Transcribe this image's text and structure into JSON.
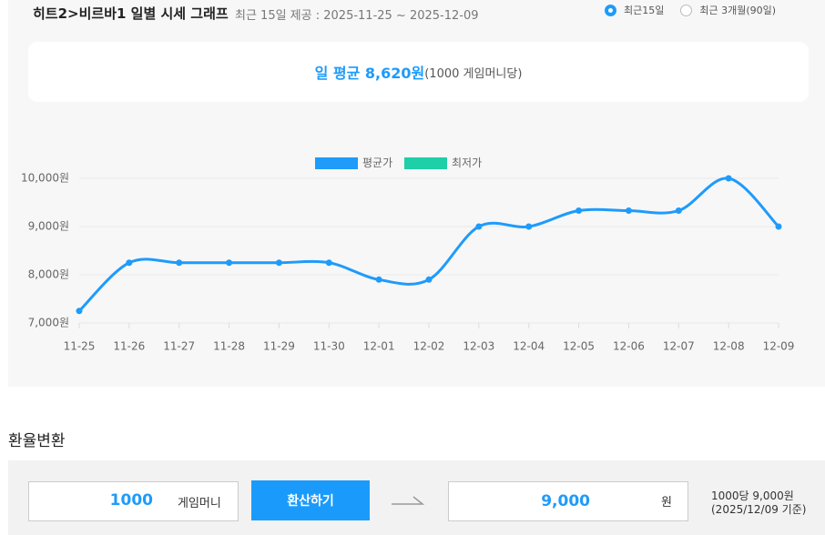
{
  "header": {
    "title": "히트2>비르바1 일별 시세 그래프",
    "subtitle": "최근 15일 제공 : 2025-11-25 ~ 2025-12-09"
  },
  "period_options": [
    {
      "label": "최근15일",
      "selected": true
    },
    {
      "label": "최근 3개월(90일)",
      "selected": false
    }
  ],
  "summary": {
    "average": "일 평균 8,620원",
    "unit_note": "(1000 게임머니당)"
  },
  "chart_data": {
    "type": "line",
    "categories": [
      "11-25",
      "11-26",
      "11-27",
      "11-28",
      "11-29",
      "11-30",
      "12-01",
      "12-02",
      "12-03",
      "12-04",
      "12-05",
      "12-06",
      "12-07",
      "12-08",
      "12-09"
    ],
    "series": [
      {
        "name": "평균가",
        "color": "#1e9bfb",
        "values": [
          7250,
          8250,
          8250,
          8250,
          8250,
          8250,
          7900,
          7900,
          9000,
          9000,
          9330,
          9330,
          9330,
          10000,
          9000
        ]
      },
      {
        "name": "최저가",
        "color": "#1ecfa8",
        "values": [
          null,
          null,
          null,
          null,
          null,
          null,
          null,
          null,
          null,
          null,
          null,
          null,
          null,
          null,
          null
        ]
      }
    ],
    "ylim": [
      7000,
      10000
    ],
    "yticks": [
      {
        "value": 7000,
        "label": "7,000원"
      },
      {
        "value": 8000,
        "label": "8,000원"
      },
      {
        "value": 9000,
        "label": "9,000원"
      },
      {
        "value": 10000,
        "label": "10,000원"
      }
    ],
    "grid": true,
    "smooth": true,
    "legend": "top"
  },
  "converter": {
    "title": "환율변환",
    "amount": "1000",
    "amount_unit": "게임머니",
    "button": "환산하기",
    "result": "9,000",
    "result_unit": "원",
    "rate_note": "1000당 9,000원",
    "rate_date": "(2025/12/09 기준)"
  }
}
